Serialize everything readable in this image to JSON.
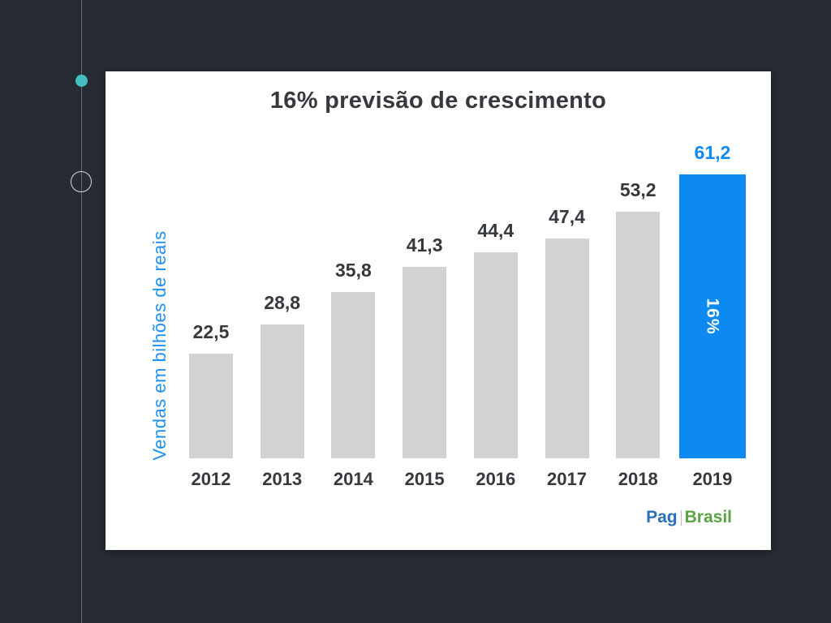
{
  "slide": {
    "bg_color": "#262b34",
    "card_color": "#ffffff"
  },
  "nav": {
    "filled_dot_color": "#43bfc3",
    "open_dot_border_color": "#d7dadf"
  },
  "chart": {
    "title": "16% previsão de crescimento",
    "ylabel": "Vendas em bilhões de reais"
  },
  "logo": {
    "part1": "Pag",
    "part2": "Brasil",
    "part1_color": "#2a70b8",
    "part2_color": "#5aa345"
  },
  "chart_data": {
    "type": "bar",
    "title": "16% previsão de crescimento",
    "ylabel": "Vendas em bilhões de reais",
    "xlabel": "",
    "categories": [
      "2012",
      "2013",
      "2014",
      "2015",
      "2016",
      "2017",
      "2018",
      "2019"
    ],
    "values": [
      22.5,
      28.8,
      35.8,
      41.3,
      44.4,
      47.4,
      53.2,
      61.2
    ],
    "value_labels": [
      "22,5",
      "28,8",
      "35,8",
      "41,3",
      "44,4",
      "47,4",
      "53,2",
      "61,2"
    ],
    "highlight_index": 7,
    "highlight_annotation": "16%",
    "bar_color": "#d2d2d4",
    "highlight_color": "#0d8af0",
    "label_color": "#35383d",
    "highlight_label_color": "#0d8af0",
    "ylim": [
      0,
      62
    ],
    "grid": false,
    "legend": false
  }
}
